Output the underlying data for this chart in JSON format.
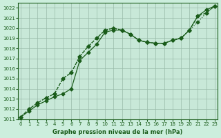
{
  "title": "Graphe pression niveau de la mer (hPa)",
  "xlabel": "Graphe pression niveau de la mer (hPa)",
  "background_color": "#cceedd",
  "plot_bg_color": "#ddeeff",
  "grid_color": "#aaccbb",
  "line_color": "#1a5c1a",
  "line_color2": "#2d7a2d",
  "ylim": [
    1011,
    1022.5
  ],
  "xlim": [
    -0.3,
    23.3
  ],
  "yticks": [
    1011,
    1012,
    1013,
    1014,
    1015,
    1016,
    1017,
    1018,
    1019,
    1020,
    1021,
    1022
  ],
  "xticks": [
    0,
    1,
    2,
    3,
    4,
    5,
    6,
    7,
    8,
    9,
    10,
    11,
    12,
    13,
    14,
    15,
    16,
    17,
    18,
    19,
    20,
    21,
    22,
    23
  ],
  "series1": [
    1011.2,
    1011.8,
    1012.4,
    1012.8,
    1013.2,
    1013.5,
    1014.0,
    1016.8,
    1017.6,
    1018.4,
    1019.6,
    1019.8,
    1019.8,
    1019.4,
    1018.8,
    1018.6,
    1018.5,
    1018.5,
    1018.8,
    1019.0,
    1019.8,
    1021.2,
    1021.8,
    1022.2
  ],
  "series2": [
    1011.2,
    1012.0,
    1012.6,
    1013.1,
    1013.5,
    1015.0,
    1015.6,
    1017.2,
    1018.2,
    1019.0,
    1019.8,
    1020.0,
    1019.8,
    1019.4,
    1018.8,
    1018.6,
    1018.5,
    1018.5,
    1018.8,
    1019.0,
    1019.8,
    1021.2,
    1021.5,
    1022.2
  ],
  "series3": [
    1011.2,
    1012.0,
    1012.6,
    1013.1,
    1013.5,
    1015.0,
    1015.6,
    1017.2,
    1018.2,
    1019.0,
    1019.8,
    1020.0,
    1019.8,
    1019.4,
    1018.8,
    1018.6,
    1018.5,
    1018.5,
    1018.8,
    1019.0,
    1019.8,
    1020.6,
    1021.5,
    1022.2
  ],
  "marker": "D",
  "markersize": 2.5,
  "linewidth": 0.9
}
